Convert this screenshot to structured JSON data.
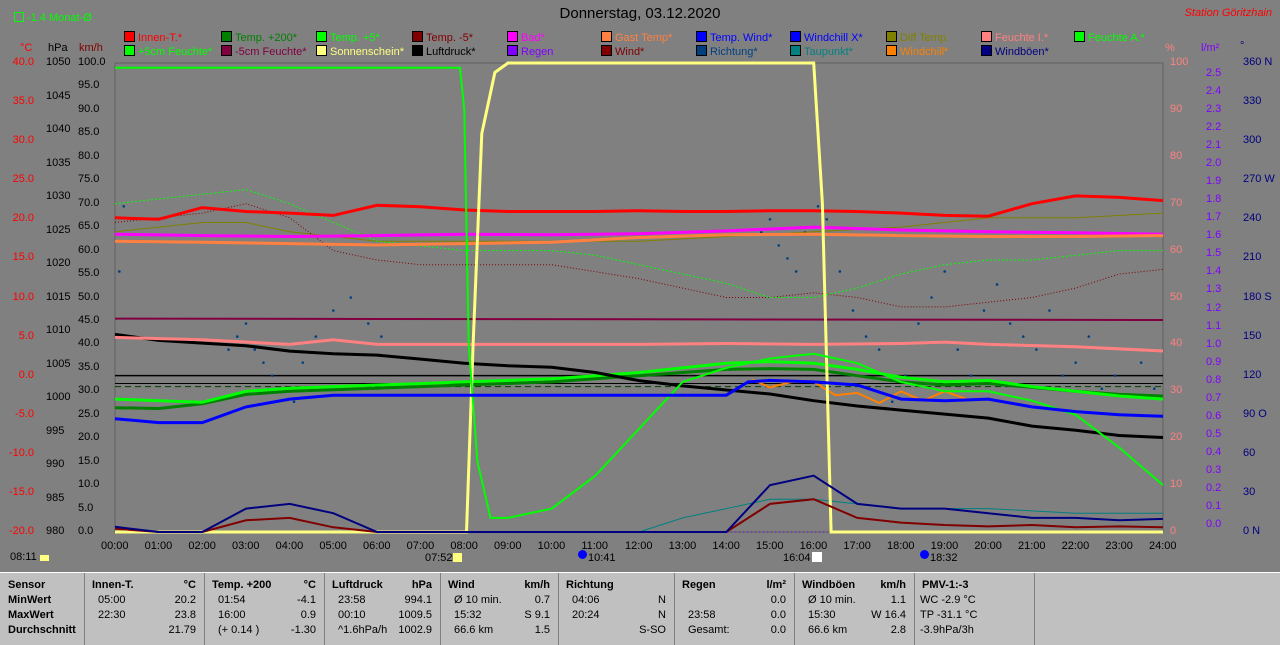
{
  "header": {
    "title": "Donnerstag, 03.12.2020",
    "station": "Station Göritzhain",
    "status_label": "-1.4 Monat-Ø",
    "status_icon": "checkbox-icon"
  },
  "colors": {
    "background": "#808080",
    "innen": "#ff0000",
    "temp200": "#008000",
    "temp5": "#00ff00",
    "tempm5": "#800000",
    "bad": "#ff00ff",
    "gast": "#ff8040",
    "tempwind": "#0000ff",
    "windchillx": "#0000ff",
    "diff": "#808000",
    "feuchtei": "#ff8080",
    "feuchtea": "#00ff00",
    "feuchte5": "#00ff00",
    "feuchtem5": "#800040",
    "sonne": "#ffff80",
    "luftdruck": "#000000",
    "regen": "#8000ff",
    "wind": "#800000",
    "richtung": "#004080",
    "taupunkt": "#008080",
    "windchill": "#ff8000",
    "windboeen": "#000080"
  },
  "legend": [
    [
      "Innen-T.*",
      "#ff0000"
    ],
    [
      "Temp. +200*",
      "#008000"
    ],
    [
      "Temp. +5*",
      "#00ff00"
    ],
    [
      "Temp. -5*",
      "#800000"
    ],
    [
      "Bad*",
      "#ff00ff"
    ],
    [
      "Gast Temp*",
      "#ff8040"
    ],
    [
      "Temp. Wind*",
      "#0000ff"
    ],
    [
      "Windchill X*",
      "#0000ff"
    ],
    [
      "Diff Temp.",
      "#808000"
    ],
    [
      "Feuchte I.*",
      "#ff8080"
    ],
    [
      "Feuchte A.*",
      "#00ff00"
    ],
    [
      "+5cm Feuchte*",
      "#00ff00"
    ],
    [
      "-5cm Feuchte*",
      "#800040"
    ],
    [
      "Sonnenschein*",
      "#ffff80"
    ],
    [
      "Luftdruck*",
      "#000000"
    ],
    [
      "Regen",
      "#8000ff"
    ],
    [
      "Wind*",
      "#800000"
    ],
    [
      "Richtung*",
      "#004080"
    ],
    [
      "Taupunkt*",
      "#008080"
    ],
    [
      "Windchill*",
      "#ff8000"
    ],
    [
      "Windböen*",
      "#000080"
    ]
  ],
  "axis_units": {
    "celsius": "°C",
    "hpa": "hPa",
    "kmh": "km/h",
    "percent": "%",
    "lm2": "l/m²",
    "deg": "°"
  },
  "axis_ticks": {
    "celsius": [
      "40.0",
      "35.0",
      "30.0",
      "25.0",
      "20.0",
      "15.0",
      "10.0",
      "5.0",
      "0.0",
      "-5.0",
      "-10.0",
      "-15.0",
      "-20.0"
    ],
    "hpa": [
      "1050",
      "1045",
      "1040",
      "1035",
      "1030",
      "1025",
      "1020",
      "1015",
      "1010",
      "1005",
      "1000",
      "995",
      "990",
      "985",
      "980"
    ],
    "kmh": [
      "100.0",
      "95.0",
      "90.0",
      "85.0",
      "80.0",
      "75.0",
      "70.0",
      "65.0",
      "60.0",
      "55.0",
      "50.0",
      "45.0",
      "40.0",
      "35.0",
      "30.0",
      "25.0",
      "20.0",
      "15.0",
      "10.0",
      "5.0",
      "0.0"
    ],
    "percent": [
      "100",
      "90",
      "80",
      "70",
      "60",
      "50",
      "40",
      "30",
      "20",
      "10",
      "0"
    ],
    "lm2": [
      "2.5",
      "2.4",
      "2.3",
      "2.2",
      "2.1",
      "2.0",
      "1.9",
      "1.8",
      "1.7",
      "1.6",
      "1.5",
      "1.4",
      "1.3",
      "1.2",
      "1.1",
      "1.0",
      "0.9",
      "0.8",
      "0.7",
      "0.6",
      "0.5",
      "0.4",
      "0.3",
      "0.2",
      "0.1",
      "0.0"
    ],
    "deg": [
      "360 N",
      "330",
      "300",
      "270 W",
      "240",
      "210",
      "180 S",
      "150",
      "120",
      "90 O",
      "60",
      "30",
      "0 N"
    ],
    "time": [
      "00:00",
      "01:00",
      "02:00",
      "03:00",
      "04:00",
      "05:00",
      "06:00",
      "07:00",
      "08:00",
      "09:00",
      "10:00",
      "11:00",
      "12:00",
      "13:00",
      "14:00",
      "15:00",
      "16:00",
      "17:00",
      "18:00",
      "19:00",
      "20:00",
      "21:00",
      "22:00",
      "23:00",
      "24:00"
    ]
  },
  "markers": {
    "sunrise": "07:52",
    "sunset": "16:04",
    "moonrise": "10:41",
    "moonset": "18:32",
    "first": "08:11"
  },
  "chart_data": {
    "type": "line",
    "title": "Donnerstag, 03.12.2020",
    "x_unit": "hours",
    "xlim": [
      0,
      24
    ],
    "ylim_celsius": [
      -20,
      40
    ],
    "ylim_kmh": [
      0,
      100
    ],
    "grid": false,
    "series": [
      {
        "name": "Innen-T.*",
        "axis": "celsius",
        "color": "#ff0000",
        "width": 3,
        "x": [
          0,
          1,
          2,
          3,
          4,
          5,
          6,
          7,
          8,
          9,
          10,
          11,
          12,
          13,
          14,
          15,
          16,
          17,
          18,
          19,
          20,
          21,
          22,
          23,
          24
        ],
        "y": [
          20.2,
          20.0,
          21.5,
          21.0,
          20.8,
          20.5,
          21.8,
          21.6,
          21.2,
          21.0,
          21.0,
          21.0,
          21.1,
          21.0,
          21.0,
          21.1,
          21.1,
          21.0,
          20.8,
          20.5,
          20.4,
          22.0,
          23.0,
          22.8,
          22.4
        ]
      },
      {
        "name": "Temp. +200*",
        "axis": "celsius",
        "color": "#008000",
        "width": 3,
        "x": [
          0,
          1,
          2,
          3,
          4,
          5,
          6,
          7,
          8,
          9,
          10,
          11,
          12,
          13,
          14,
          15,
          16,
          17,
          18,
          19,
          20,
          21,
          22,
          23,
          24
        ],
        "y": [
          -4.1,
          -4.2,
          -3.6,
          -2.4,
          -2.0,
          -1.8,
          -1.6,
          -1.4,
          -1.2,
          -1.0,
          -0.8,
          -0.4,
          0.0,
          0.4,
          0.8,
          0.9,
          0.8,
          0.0,
          -0.8,
          -1.2,
          -1.0,
          -1.5,
          -2.0,
          -2.4,
          -2.6
        ]
      },
      {
        "name": "Temp. +5*",
        "axis": "celsius",
        "color": "#00ff00",
        "width": 3,
        "x": [
          0,
          1,
          2,
          3,
          4,
          5,
          6,
          7,
          8,
          9,
          10,
          11,
          12,
          13,
          14,
          15,
          16,
          17,
          18,
          19,
          20,
          21,
          22,
          23,
          24
        ],
        "y": [
          -3.0,
          -3.2,
          -3.4,
          -2.0,
          -1.6,
          -1.4,
          -1.2,
          -1.0,
          -0.8,
          -0.6,
          -0.4,
          0.0,
          0.4,
          1.0,
          1.6,
          1.8,
          1.6,
          0.8,
          -0.2,
          -0.8,
          -0.6,
          -1.4,
          -2.0,
          -2.6,
          -3.0
        ]
      },
      {
        "name": "Luftdruck*",
        "axis": "hpa",
        "color": "#000000",
        "width": 3,
        "x": [
          0,
          1,
          2,
          3,
          4,
          5,
          6,
          7,
          8,
          9,
          10,
          11,
          12,
          13,
          14,
          15,
          16,
          17,
          18,
          19,
          20,
          21,
          22,
          23,
          24
        ],
        "y": [
          1009.5,
          1008.6,
          1008.2,
          1007.8,
          1007.0,
          1006.6,
          1006.4,
          1005.8,
          1005.2,
          1004.8,
          1004.6,
          1003.8,
          1002.6,
          1001.8,
          1001.2,
          1000.6,
          999.6,
          998.8,
          998.2,
          997.6,
          997.0,
          995.8,
          995.2,
          994.4,
          994.1
        ]
      },
      {
        "name": "Bad*",
        "axis": "percent",
        "color": "#ff00ff",
        "width": 3,
        "x": [
          0,
          2,
          4,
          6,
          8,
          10,
          12,
          14,
          16,
          18,
          20,
          22,
          24
        ],
        "y": [
          63.5,
          63.2,
          63.0,
          63.2,
          63.5,
          63.4,
          63.6,
          64.2,
          65.0,
          64.4,
          64.0,
          63.8,
          63.5
        ]
      },
      {
        "name": "Gast Temp*",
        "axis": "percent",
        "color": "#ff8040",
        "width": 3,
        "x": [
          0,
          2,
          4,
          6,
          8,
          10,
          12,
          14,
          16,
          18,
          20,
          22,
          24
        ],
        "y": [
          62.0,
          61.8,
          61.5,
          61.2,
          61.5,
          61.8,
          62.8,
          63.4,
          63.5,
          63.2,
          63.0,
          63.0,
          63.2
        ]
      },
      {
        "name": "Feuchte I.*",
        "axis": "percent",
        "color": "#ff8080",
        "width": 3,
        "x": [
          0,
          2,
          4,
          5,
          6,
          8,
          10,
          12,
          14,
          16,
          18,
          19,
          20,
          22,
          24
        ],
        "y": [
          41.5,
          41.0,
          40.0,
          41.0,
          40.0,
          40.0,
          40.0,
          40.0,
          40.2,
          40.0,
          40.2,
          40.5,
          40.0,
          39.5,
          38.6
        ]
      },
      {
        "name": "-5cm Feuchte*",
        "axis": "percent",
        "color": "#800040",
        "width": 2,
        "x": [
          0,
          24
        ],
        "y": [
          45.5,
          45.2
        ]
      },
      {
        "name": "Sonnenschein*",
        "axis": "percent",
        "color": "#ffff80",
        "width": 3,
        "x": [
          0,
          8.05,
          8.2,
          8.4,
          8.7,
          9.0,
          16.0,
          16.2,
          16.4,
          24
        ],
        "y": [
          0,
          0,
          40,
          85,
          98,
          100,
          100,
          70,
          0,
          0
        ]
      },
      {
        "name": "+5cm Feuchte*",
        "axis": "percent",
        "color": "#00ff00",
        "width": 2,
        "x": [
          0,
          7.9,
          8.0,
          8.1,
          8.3,
          8.6,
          9,
          10,
          11,
          12,
          13,
          14,
          15,
          16,
          17,
          18,
          19,
          20,
          21,
          22,
          23,
          24
        ],
        "y": [
          99,
          99,
          90,
          40,
          15,
          3,
          3,
          5,
          12,
          22,
          32,
          35,
          37,
          38,
          36,
          32,
          30,
          30,
          28,
          25,
          18,
          10
        ]
      },
      {
        "name": "Wind*",
        "axis": "kmh",
        "color": "#800000",
        "width": 2,
        "x": [
          0,
          1,
          2,
          3,
          4,
          5,
          6,
          7,
          8,
          9,
          10,
          11,
          12,
          13,
          14,
          15,
          16,
          17,
          18,
          19,
          20,
          21,
          22,
          23,
          24
        ],
        "y": [
          0.7,
          0,
          0,
          2.5,
          3.0,
          1.0,
          0,
          0,
          0,
          0,
          0,
          0,
          0,
          0,
          0,
          6,
          7,
          3,
          2,
          1.5,
          1.2,
          1.5,
          1.0,
          1.2,
          1.0
        ]
      },
      {
        "name": "Windböen*",
        "axis": "kmh",
        "color": "#000080",
        "width": 2,
        "x": [
          0,
          1,
          2,
          3,
          4,
          5,
          6,
          7,
          8,
          9,
          10,
          11,
          12,
          13,
          14,
          15,
          16,
          17,
          18,
          19,
          20,
          21,
          22,
          23,
          24
        ],
        "y": [
          1.1,
          0,
          0,
          5,
          6,
          4,
          0,
          0,
          0,
          0,
          0,
          0,
          0,
          0,
          0,
          10,
          12,
          6,
          5,
          5,
          4,
          3,
          3,
          2.5,
          2.8
        ]
      },
      {
        "name": "Temp. Wind*",
        "axis": "celsius",
        "color": "#0000ff",
        "width": 3,
        "x": [
          0,
          1,
          2,
          3,
          4,
          5,
          6,
          7,
          8,
          9,
          10,
          11,
          12,
          13,
          14,
          14.5,
          15,
          16,
          17,
          18,
          19,
          20,
          21,
          22,
          23,
          24
        ],
        "y": [
          -5.5,
          -6.0,
          -6.0,
          -4.0,
          -3.0,
          -2.5,
          -2.5,
          -2.5,
          -2.5,
          -2.5,
          -2.5,
          -2.5,
          -2.5,
          -2.5,
          -2.5,
          -0.8,
          -0.6,
          -0.8,
          -1.2,
          -3.0,
          -3.2,
          -3.0,
          -4.0,
          -4.6,
          -5.0,
          -5.2
        ]
      }
    ]
  },
  "table": {
    "row_labels": [
      "Sensor",
      "MinWert",
      "MaxWert",
      "Durchschnitt"
    ],
    "columns": [
      {
        "header": "Innen-T.",
        "unit": "°C",
        "rows": [
          [
            "05:00",
            "20.2"
          ],
          [
            "22:30",
            "23.8"
          ],
          [
            "",
            "21.79"
          ]
        ]
      },
      {
        "header": "Temp. +200",
        "unit": "°C",
        "rows": [
          [
            "01:54",
            "-4.1"
          ],
          [
            "16:00",
            "0.9"
          ],
          [
            "(+ 0.14 )",
            "-1.30"
          ]
        ]
      },
      {
        "header": "Luftdruck",
        "unit": "hPa",
        "rows": [
          [
            "23:58",
            "994.1"
          ],
          [
            "00:10",
            "1009.5"
          ],
          [
            "^1.6hPa/h",
            "1002.9"
          ]
        ]
      },
      {
        "header": "Wind",
        "unit": "km/h",
        "rows": [
          [
            "Ø 10 min.",
            "0.7"
          ],
          [
            "15:32",
            "S 9.1"
          ],
          [
            "66.6 km",
            "1.5"
          ]
        ]
      },
      {
        "header": "Richtung",
        "unit": "",
        "rows": [
          [
            "04:06",
            "N"
          ],
          [
            "20:24",
            "N"
          ],
          [
            "",
            "S-SO"
          ]
        ]
      },
      {
        "header": "Regen",
        "unit": "l/m²",
        "rows": [
          [
            "",
            "0.0"
          ],
          [
            "23:58",
            "0.0"
          ],
          [
            "Gesamt:",
            "0.0"
          ]
        ]
      },
      {
        "header": "Windböen",
        "unit": "km/h",
        "rows": [
          [
            "Ø 10 min.",
            "1.1"
          ],
          [
            "15:30",
            "W 16.4"
          ],
          [
            "66.6 km",
            "2.8"
          ]
        ]
      },
      {
        "header": "PMV-1:-3",
        "unit": "",
        "rows": [
          [
            "WC -2.9 °C",
            ""
          ],
          [
            "TP -31.1 °C",
            ""
          ],
          [
            "-3.9hPa/3h",
            ""
          ]
        ]
      }
    ]
  }
}
